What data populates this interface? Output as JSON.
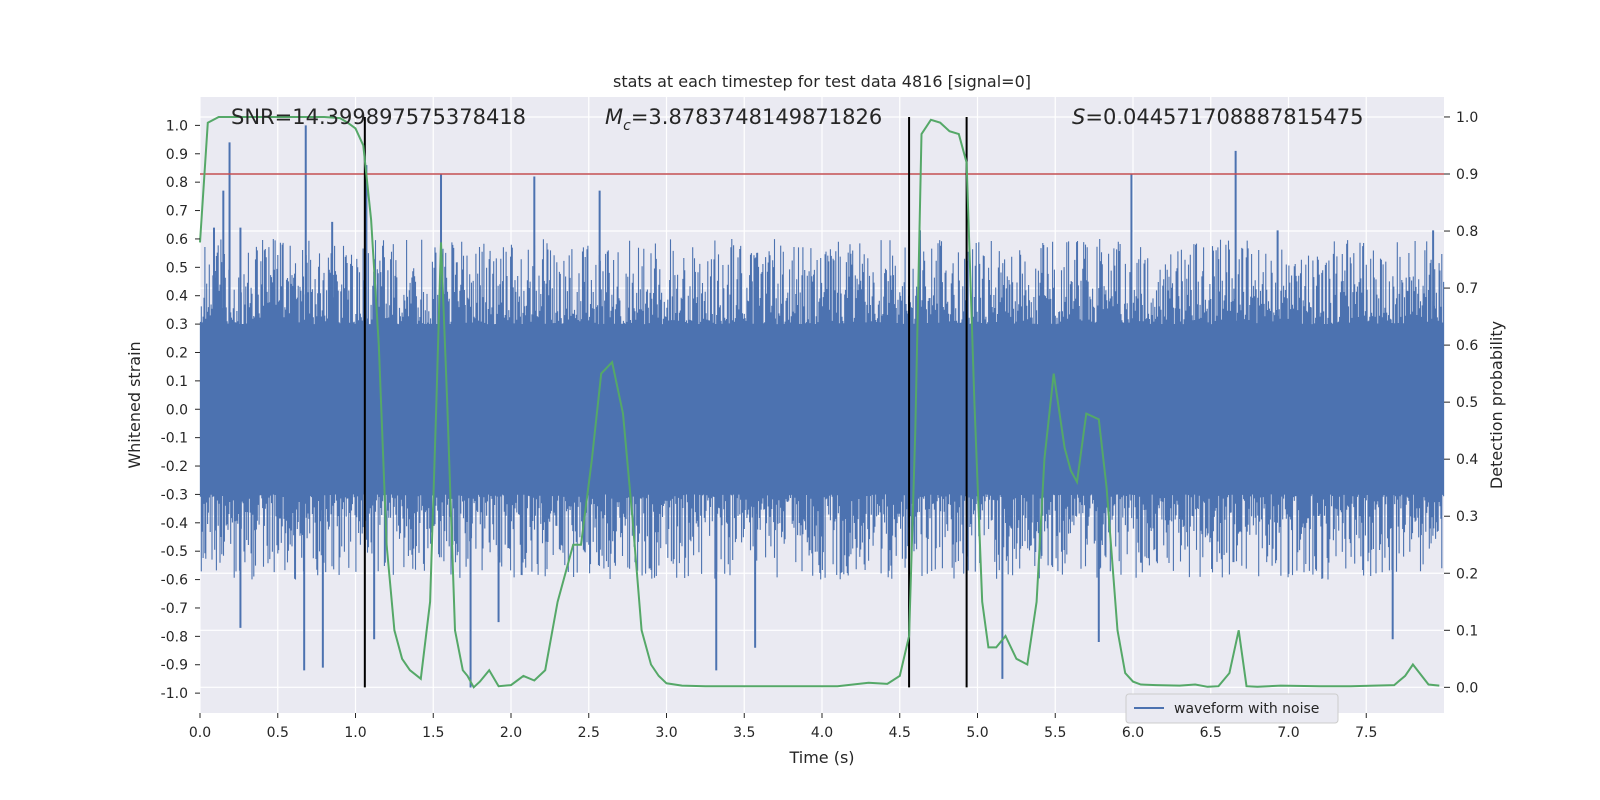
{
  "chart_data": {
    "type": "line",
    "title": "stats at each timestep for test data 4816 [signal=0]",
    "xlabel": "Time (s)",
    "ylabel_left": "Whitened strain",
    "ylabel_right": "Detection probability",
    "xlim": [
      0.0,
      8.0
    ],
    "ylim_left": [
      -1.07,
      1.1
    ],
    "ylim_right": [
      -0.045,
      1.035
    ],
    "grid": true,
    "x_ticks": [
      "0.0",
      "0.5",
      "1.0",
      "1.5",
      "2.0",
      "2.5",
      "3.0",
      "3.5",
      "4.0",
      "4.5",
      "5.0",
      "5.5",
      "6.0",
      "6.5",
      "7.0",
      "7.5"
    ],
    "y_left_ticks": [
      "1.0",
      "0.9",
      "0.8",
      "0.7",
      "0.6",
      "0.5",
      "0.4",
      "0.3",
      "0.2",
      "0.1",
      "0.0",
      "-0.1",
      "-0.2",
      "-0.3",
      "-0.4",
      "-0.5",
      "-0.6",
      "-0.7",
      "-0.8",
      "-0.9",
      "-1.0"
    ],
    "y_right_ticks": [
      "1.0",
      "0.9",
      "0.8",
      "0.7",
      "0.6",
      "0.5",
      "0.4",
      "0.3",
      "0.2",
      "0.1",
      "0.0"
    ],
    "annotations": {
      "snr": "SNR=14.399897575378418",
      "mc_symbol": "M",
      "mc_sub": "c",
      "mc_value": "=3.8783748149871826",
      "s_symbol": "S",
      "s_value": "=0.044571708887815475"
    },
    "threshold": {
      "value": 0.9,
      "axis": "right",
      "color": "#c44e52"
    },
    "vertical_lines": [
      1.06,
      4.56,
      4.93
    ],
    "legend": {
      "label": "waveform with noise",
      "position": "lower-right"
    },
    "series": [
      {
        "name": "waveform with noise",
        "axis": "left",
        "color": "#4c72b0",
        "envelope": {
          "core": [
            -0.21,
            0.21
          ],
          "upper_typical": [
            0.3,
            0.6
          ],
          "lower_typical": [
            -0.3,
            -0.6
          ]
        },
        "spikes": [
          {
            "x": 0.09,
            "y": 0.64
          },
          {
            "x": 0.15,
            "y": 0.77
          },
          {
            "x": 0.19,
            "y": 0.94
          },
          {
            "x": 0.26,
            "y": 0.64
          },
          {
            "x": 0.68,
            "y": 1.0
          },
          {
            "x": 0.85,
            "y": 0.66
          },
          {
            "x": 1.07,
            "y": 0.86
          },
          {
            "x": 1.55,
            "y": 0.83
          },
          {
            "x": 2.15,
            "y": 0.82
          },
          {
            "x": 2.57,
            "y": 0.77
          },
          {
            "x": 4.63,
            "y": 0.63
          },
          {
            "x": 5.99,
            "y": 0.83
          },
          {
            "x": 6.66,
            "y": 0.91
          },
          {
            "x": 6.93,
            "y": 0.63
          },
          {
            "x": 7.93,
            "y": 0.63
          },
          {
            "x": 0.26,
            "y": -0.77
          },
          {
            "x": 0.67,
            "y": -0.92
          },
          {
            "x": 0.79,
            "y": -0.91
          },
          {
            "x": 1.12,
            "y": -0.81
          },
          {
            "x": 1.74,
            "y": -0.98
          },
          {
            "x": 1.92,
            "y": -0.75
          },
          {
            "x": 3.32,
            "y": -0.92
          },
          {
            "x": 3.57,
            "y": -0.84
          },
          {
            "x": 5.16,
            "y": -0.95
          },
          {
            "x": 5.78,
            "y": -0.82
          },
          {
            "x": 7.67,
            "y": -0.81
          }
        ]
      },
      {
        "name": "detection probability",
        "axis": "right",
        "color": "#55a868",
        "x": [
          0.0,
          0.05,
          0.12,
          0.2,
          0.4,
          0.6,
          0.8,
          0.9,
          0.95,
          1.0,
          1.05,
          1.1,
          1.15,
          1.2,
          1.25,
          1.3,
          1.35,
          1.42,
          1.48,
          1.52,
          1.55,
          1.59,
          1.64,
          1.69,
          1.72,
          1.76,
          1.8,
          1.86,
          1.92,
          2.0,
          2.08,
          2.15,
          2.22,
          2.3,
          2.4,
          2.45,
          2.52,
          2.58,
          2.65,
          2.72,
          2.78,
          2.84,
          2.9,
          2.95,
          3.0,
          3.1,
          3.25,
          3.5,
          3.8,
          4.1,
          4.3,
          4.42,
          4.5,
          4.56,
          4.6,
          4.64,
          4.7,
          4.76,
          4.82,
          4.88,
          4.93,
          4.98,
          5.03,
          5.07,
          5.12,
          5.18,
          5.25,
          5.32,
          5.38,
          5.43,
          5.49,
          5.56,
          5.6,
          5.64,
          5.7,
          5.78,
          5.83,
          5.9,
          5.95,
          6.0,
          6.05,
          6.15,
          6.3,
          6.4,
          6.48,
          6.55,
          6.62,
          6.68,
          6.73,
          6.8,
          6.95,
          7.2,
          7.4,
          7.55,
          7.68,
          7.75,
          7.8,
          7.9,
          7.97
        ],
        "y": [
          0.78,
          0.99,
          1.0,
          1.0,
          1.0,
          1.0,
          1.0,
          0.998,
          0.99,
          0.98,
          0.95,
          0.82,
          0.6,
          0.25,
          0.1,
          0.05,
          0.03,
          0.015,
          0.15,
          0.5,
          0.78,
          0.5,
          0.1,
          0.03,
          0.02,
          0.0,
          0.01,
          0.03,
          0.002,
          0.004,
          0.02,
          0.012,
          0.03,
          0.15,
          0.25,
          0.25,
          0.4,
          0.55,
          0.57,
          0.48,
          0.3,
          0.1,
          0.04,
          0.02,
          0.007,
          0.003,
          0.002,
          0.002,
          0.002,
          0.002,
          0.008,
          0.006,
          0.02,
          0.09,
          0.45,
          0.97,
          0.995,
          0.99,
          0.975,
          0.97,
          0.92,
          0.5,
          0.15,
          0.07,
          0.07,
          0.09,
          0.05,
          0.04,
          0.15,
          0.4,
          0.55,
          0.42,
          0.38,
          0.36,
          0.48,
          0.47,
          0.35,
          0.1,
          0.025,
          0.01,
          0.005,
          0.004,
          0.003,
          0.005,
          0.001,
          0.002,
          0.025,
          0.1,
          0.002,
          0.001,
          0.003,
          0.002,
          0.002,
          0.003,
          0.004,
          0.02,
          0.04,
          0.005,
          0.003
        ]
      }
    ]
  }
}
